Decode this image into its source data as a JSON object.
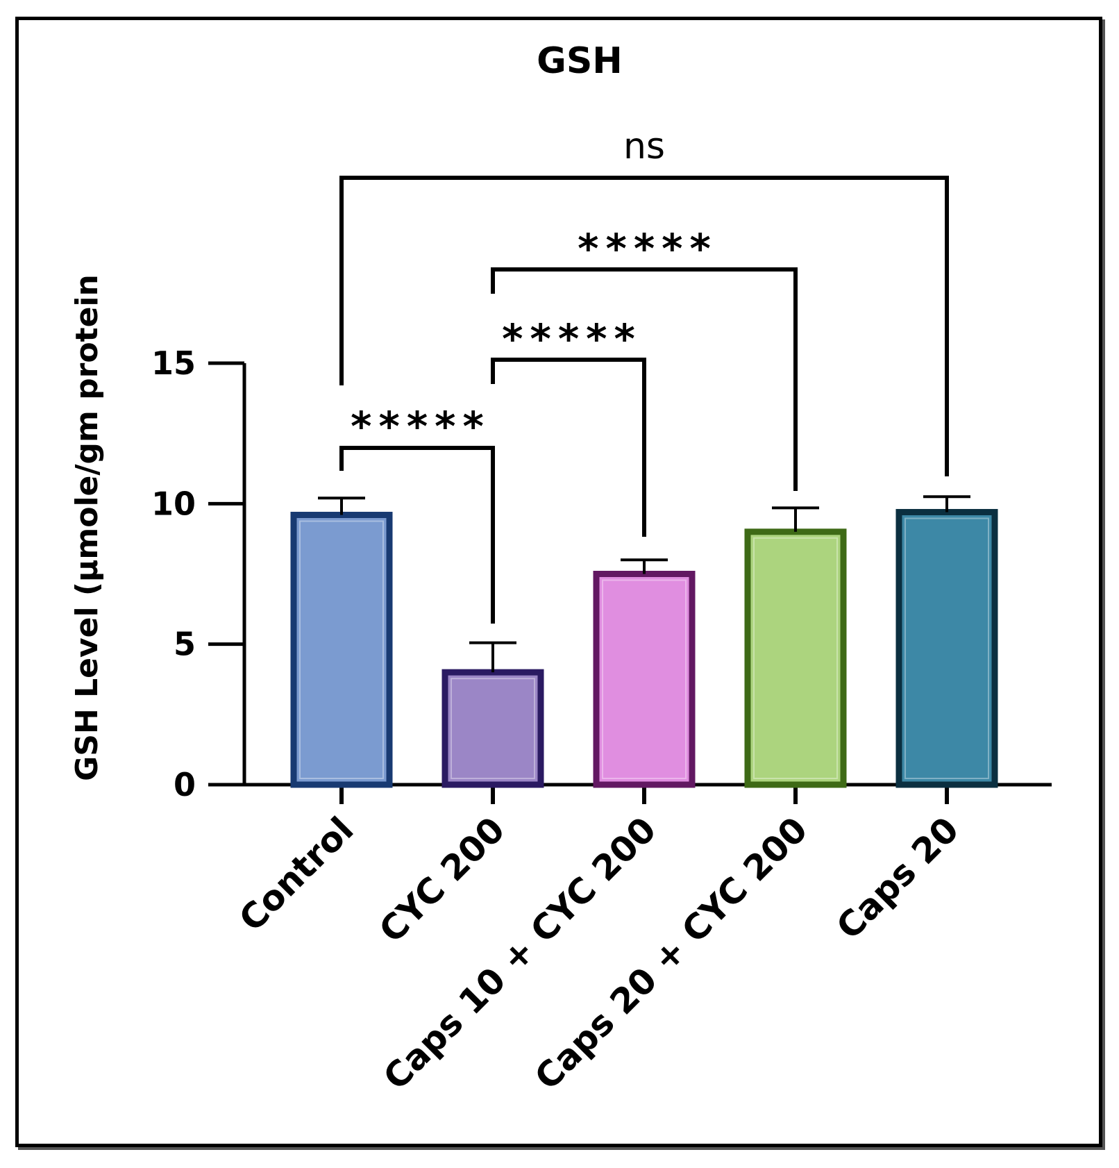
{
  "chart_data": {
    "type": "bar",
    "title": "GSH",
    "ylabel": "GSH Level (µmole/gm protein",
    "xlabel": "",
    "ylim": [
      0,
      15
    ],
    "yticks": [
      0,
      5,
      10,
      15
    ],
    "grid": false,
    "categories": [
      "Control",
      "CYC 200",
      "Caps 10 + CYC 200",
      "Caps 20 + CYC 200",
      "Caps 20"
    ],
    "values": [
      9.6,
      4.0,
      7.5,
      9.0,
      9.7
    ],
    "error": [
      0.6,
      1.05,
      0.5,
      0.85,
      0.55
    ],
    "colors": {
      "fill": [
        "#7b9bd0",
        "#9b86c6",
        "#e08ee0",
        "#acd47e",
        "#3d88a6"
      ],
      "border": [
        "#183a72",
        "#2a1a62",
        "#621862",
        "#3e6a16",
        "#0b2f40"
      ]
    },
    "comparisons": [
      {
        "from": "Control",
        "to": "CYC 200",
        "label": "*****"
      },
      {
        "from": "CYC 200",
        "to": "Caps 10 + CYC 200",
        "label": "*****"
      },
      {
        "from": "CYC 200",
        "to": "Caps 20 + CYC 200",
        "label": "*****"
      },
      {
        "from": "Control",
        "to": "Caps 20",
        "label": "ns"
      }
    ]
  }
}
